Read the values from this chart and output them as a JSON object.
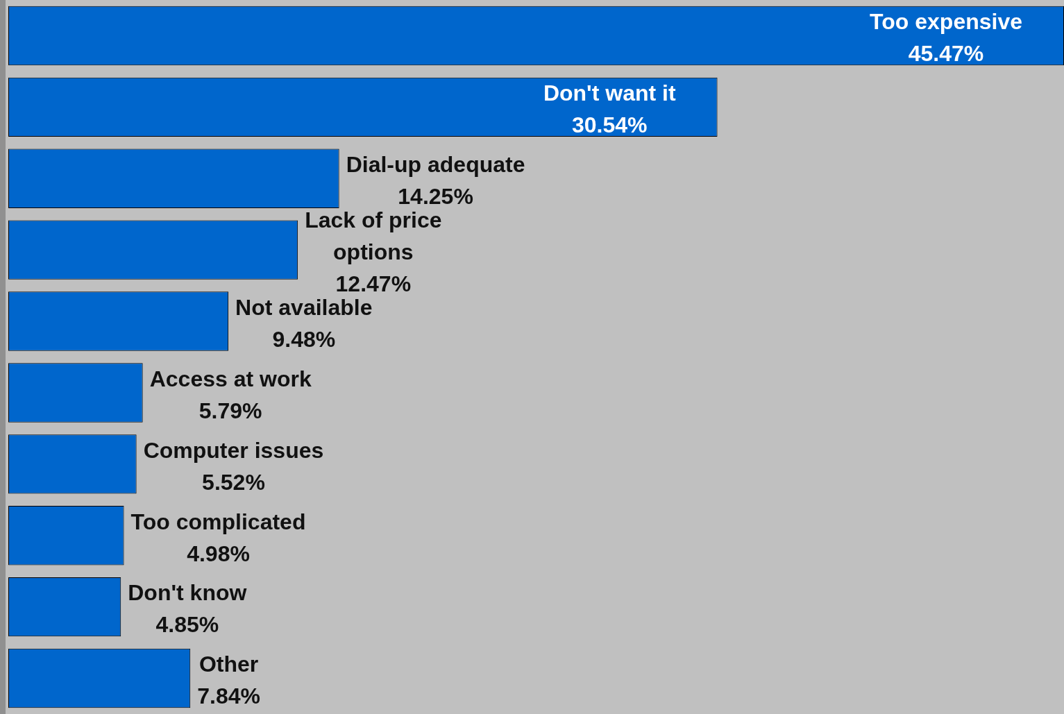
{
  "chart_data": {
    "type": "bar",
    "orientation": "horizontal",
    "categories": [
      "Too expensive",
      "Don't want it",
      "Dial-up adequate",
      "Lack of price options",
      "Not available",
      "Access at work",
      "Computer issues",
      "Too complicated",
      "Don't know",
      "Other"
    ],
    "values": [
      45.47,
      30.54,
      14.25,
      12.47,
      9.48,
      5.79,
      5.52,
      4.98,
      4.85,
      7.84
    ],
    "value_labels": [
      "45.47%",
      "30.54%",
      "14.25%",
      "12.47%",
      "9.48%",
      "5.79%",
      "5.52%",
      "4.98%",
      "4.85%",
      "7.84%"
    ],
    "color": "#0066cc",
    "tick_labels": false
  }
}
